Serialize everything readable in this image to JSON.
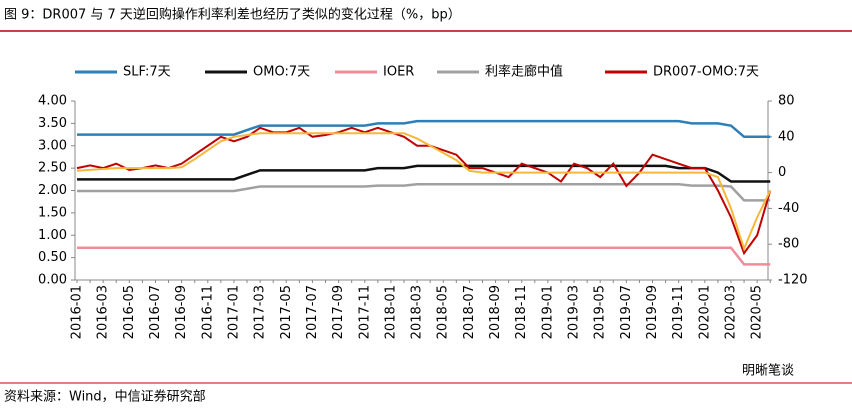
{
  "chart_data": {
    "type": "line",
    "title": "图 9：DR007 与 7 天逆回购操作利率利差也经历了类似的变化过程（%，bp）",
    "source": "资料来源：Wind，中信证券研究部",
    "watermark": "明晰笔谈",
    "categories": [
      "2016-01",
      null,
      "2016-03",
      null,
      "2016-05",
      null,
      "2016-07",
      null,
      "2016-09",
      null,
      "2016-11",
      null,
      "2017-01",
      null,
      "2017-03",
      null,
      "2017-05",
      null,
      "2017-07",
      null,
      "2017-09",
      null,
      "2017-11",
      null,
      "2018-01",
      null,
      "2018-03",
      null,
      "2018-05",
      null,
      "2018-07",
      null,
      "2018-09",
      null,
      "2018-11",
      null,
      "2019-01",
      null,
      "2019-03",
      null,
      "2019-05",
      null,
      "2019-07",
      null,
      "2019-09",
      null,
      "2019-11",
      null,
      "2020-01",
      null,
      "2020-03",
      null,
      "2020-05",
      null
    ],
    "series": [
      {
        "name": "SLF:7天",
        "color": "#2e7fb8",
        "values": [
          3.25,
          3.25,
          3.25,
          3.25,
          3.25,
          3.25,
          3.25,
          3.25,
          3.25,
          3.25,
          3.25,
          3.25,
          3.25,
          3.35,
          3.45,
          3.45,
          3.45,
          3.45,
          3.45,
          3.45,
          3.45,
          3.45,
          3.45,
          3.5,
          3.5,
          3.5,
          3.55,
          3.55,
          3.55,
          3.55,
          3.55,
          3.55,
          3.55,
          3.55,
          3.55,
          3.55,
          3.55,
          3.55,
          3.55,
          3.55,
          3.55,
          3.55,
          3.55,
          3.55,
          3.55,
          3.55,
          3.55,
          3.5,
          3.5,
          3.5,
          3.45,
          3.2,
          3.2,
          3.2
        ]
      },
      {
        "name": "OMO:7天",
        "color": "#111111",
        "values": [
          2.25,
          2.25,
          2.25,
          2.25,
          2.25,
          2.25,
          2.25,
          2.25,
          2.25,
          2.25,
          2.25,
          2.25,
          2.25,
          2.35,
          2.45,
          2.45,
          2.45,
          2.45,
          2.45,
          2.45,
          2.45,
          2.45,
          2.45,
          2.5,
          2.5,
          2.5,
          2.55,
          2.55,
          2.55,
          2.55,
          2.55,
          2.55,
          2.55,
          2.55,
          2.55,
          2.55,
          2.55,
          2.55,
          2.55,
          2.55,
          2.55,
          2.55,
          2.55,
          2.55,
          2.55,
          2.55,
          2.5,
          2.5,
          2.5,
          2.4,
          2.2,
          2.2,
          2.2,
          2.2
        ]
      },
      {
        "name": "IOER",
        "color": "#f08c9a",
        "values": [
          0.72,
          0.72,
          0.72,
          0.72,
          0.72,
          0.72,
          0.72,
          0.72,
          0.72,
          0.72,
          0.72,
          0.72,
          0.72,
          0.72,
          0.72,
          0.72,
          0.72,
          0.72,
          0.72,
          0.72,
          0.72,
          0.72,
          0.72,
          0.72,
          0.72,
          0.72,
          0.72,
          0.72,
          0.72,
          0.72,
          0.72,
          0.72,
          0.72,
          0.72,
          0.72,
          0.72,
          0.72,
          0.72,
          0.72,
          0.72,
          0.72,
          0.72,
          0.72,
          0.72,
          0.72,
          0.72,
          0.72,
          0.72,
          0.72,
          0.72,
          0.72,
          0.35,
          0.35,
          0.35
        ]
      },
      {
        "name": "利率走廊中值",
        "color": "#a0a0a0",
        "values": [
          1.99,
          1.99,
          1.99,
          1.99,
          1.99,
          1.99,
          1.99,
          1.99,
          1.99,
          1.99,
          1.99,
          1.99,
          1.99,
          2.04,
          2.09,
          2.09,
          2.09,
          2.09,
          2.09,
          2.09,
          2.09,
          2.09,
          2.09,
          2.11,
          2.11,
          2.11,
          2.14,
          2.14,
          2.14,
          2.14,
          2.14,
          2.14,
          2.14,
          2.14,
          2.14,
          2.14,
          2.14,
          2.14,
          2.14,
          2.14,
          2.14,
          2.14,
          2.14,
          2.14,
          2.14,
          2.14,
          2.14,
          2.11,
          2.11,
          2.11,
          2.09,
          1.78,
          1.78,
          1.78
        ]
      },
      {
        "name": "DR007-OMO:7天",
        "color": "#c00000",
        "axis": "y2",
        "values": [
          5,
          8,
          5,
          10,
          3,
          5,
          8,
          5,
          10,
          20,
          30,
          40,
          35,
          40,
          50,
          45,
          45,
          50,
          40,
          42,
          45,
          50,
          45,
          50,
          45,
          40,
          30,
          30,
          25,
          20,
          5,
          5,
          0,
          -5,
          10,
          5,
          0,
          -10,
          10,
          5,
          -5,
          10,
          -15,
          0,
          20,
          15,
          10,
          5,
          5,
          -20,
          -50,
          -90,
          -70,
          -20
        ]
      },
      {
        "color": "#f5b83a",
        "axis": "y2",
        "values": [
          2,
          3,
          4,
          5,
          5,
          5,
          5,
          5,
          6,
          15,
          25,
          35,
          40,
          42,
          44,
          44,
          44,
          44,
          44,
          44,
          44,
          44,
          44,
          44,
          44,
          44,
          38,
          30,
          22,
          14,
          2,
          0,
          0,
          0,
          0,
          0,
          0,
          0,
          0,
          0,
          0,
          0,
          0,
          0,
          0,
          0,
          0,
          0,
          0,
          -5,
          -40,
          -85,
          -50,
          -20
        ]
      }
    ],
    "ylim": [
      0,
      4
    ],
    "yticks": [
      {
        "value": 0,
        "label": "0.00"
      },
      {
        "value": 0.5,
        "label": "0.50"
      },
      {
        "value": 1,
        "label": "1.00"
      },
      {
        "value": 1.5,
        "label": "1.50"
      },
      {
        "value": 2,
        "label": "2.00"
      },
      {
        "value": 2.5,
        "label": "2.50"
      },
      {
        "value": 3,
        "label": "3.00"
      },
      {
        "value": 3.5,
        "label": "3.50"
      },
      {
        "value": 4,
        "label": "4.00"
      }
    ],
    "y2lim": [
      -120,
      80
    ],
    "y2ticks": [
      -120,
      -80,
      -40,
      0,
      40,
      80
    ],
    "grid": false
  }
}
